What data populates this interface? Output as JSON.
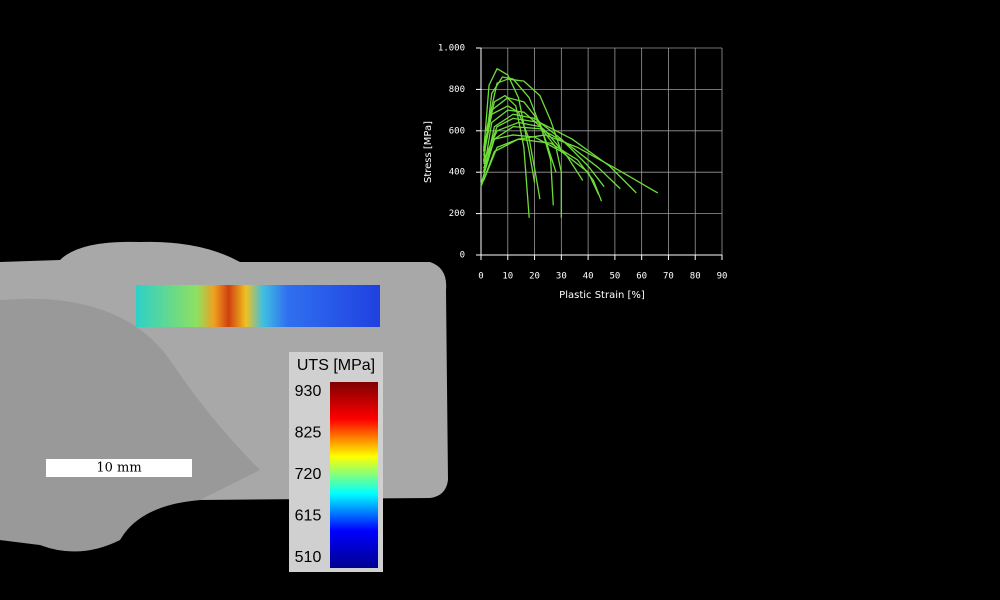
{
  "chart_data": {
    "type": "line",
    "xlabel": "Plastic Strain [%]",
    "ylabel": "Stress [MPa]",
    "xlim": [
      0,
      90
    ],
    "ylim": [
      0,
      1000
    ],
    "xticks": [
      0,
      10,
      20,
      30,
      40,
      50,
      60,
      70,
      80,
      90
    ],
    "yticks": [
      0,
      200,
      400,
      600,
      800,
      {
        "value": 1000,
        "label": "1.000"
      }
    ],
    "grid": true,
    "series": [
      {
        "color": "#6fdc3a",
        "x": [
          1,
          3,
          6,
          10,
          14,
          18,
          20
        ],
        "values": [
          500,
          820,
          900,
          870,
          760,
          500,
          350
        ]
      },
      {
        "color": "#6fdc3a",
        "x": [
          1,
          4,
          8,
          12,
          18,
          24,
          28
        ],
        "values": [
          450,
          780,
          860,
          850,
          760,
          560,
          400
        ]
      },
      {
        "color": "#6fdc3a",
        "x": [
          1,
          4,
          10,
          16,
          24,
          32,
          38
        ],
        "values": [
          400,
          640,
          700,
          690,
          600,
          480,
          360
        ]
      },
      {
        "color": "#6fdc3a",
        "x": [
          1,
          5,
          12,
          20,
          30,
          40,
          46
        ],
        "values": [
          380,
          620,
          680,
          660,
          560,
          430,
          330
        ]
      },
      {
        "color": "#6fdc3a",
        "x": [
          0,
          5,
          12,
          22,
          32,
          44,
          52
        ],
        "values": [
          340,
          560,
          620,
          610,
          540,
          420,
          320
        ]
      },
      {
        "color": "#6fdc3a",
        "x": [
          0,
          5,
          14,
          24,
          36,
          50,
          66
        ],
        "values": [
          330,
          500,
          560,
          580,
          520,
          420,
          300
        ]
      },
      {
        "color": "#6fdc3a",
        "x": [
          1,
          5,
          12,
          20,
          30,
          40,
          44
        ],
        "values": [
          420,
          560,
          580,
          570,
          500,
          400,
          290
        ]
      },
      {
        "color": "#6fdc3a",
        "x": [
          1,
          4,
          10,
          14,
          18,
          20,
          22
        ],
        "values": [
          480,
          680,
          720,
          690,
          560,
          420,
          270
        ]
      },
      {
        "color": "#6fdc3a",
        "x": [
          1,
          5,
          9,
          13,
          16,
          18
        ],
        "values": [
          520,
          740,
          770,
          720,
          520,
          180
        ]
      },
      {
        "color": "#6fdc3a",
        "x": [
          1,
          6,
          14,
          22,
          28,
          30,
          30
        ],
        "values": [
          460,
          600,
          640,
          620,
          520,
          400,
          180
        ]
      },
      {
        "color": "#6fdc3a",
        "x": [
          1,
          6,
          14,
          26,
          36,
          42,
          45
        ],
        "values": [
          360,
          520,
          560,
          540,
          460,
          360,
          260
        ]
      },
      {
        "color": "#6fdc3a",
        "x": [
          1,
          6,
          12,
          22,
          34,
          48,
          58
        ],
        "values": [
          440,
          620,
          660,
          640,
          560,
          430,
          300
        ]
      },
      {
        "color": "#6fdc3a",
        "x": [
          1,
          4,
          10,
          16,
          22,
          26,
          27
        ],
        "values": [
          500,
          700,
          760,
          740,
          640,
          460,
          240
        ]
      },
      {
        "color": "#6fdc3a",
        "x": [
          2,
          6,
          10,
          16,
          22,
          26,
          30
        ],
        "values": [
          600,
          830,
          850,
          840,
          770,
          650,
          500
        ]
      }
    ]
  },
  "colorbar": {
    "title": "UTS [MPa]",
    "ticks": [
      930,
      825,
      720,
      615,
      510
    ],
    "colors": [
      "#00008f",
      "#0000ff",
      "#00ffff",
      "#ffff00",
      "#ff0000",
      "#800000"
    ]
  },
  "scale_bar": {
    "label": "10 mm"
  }
}
